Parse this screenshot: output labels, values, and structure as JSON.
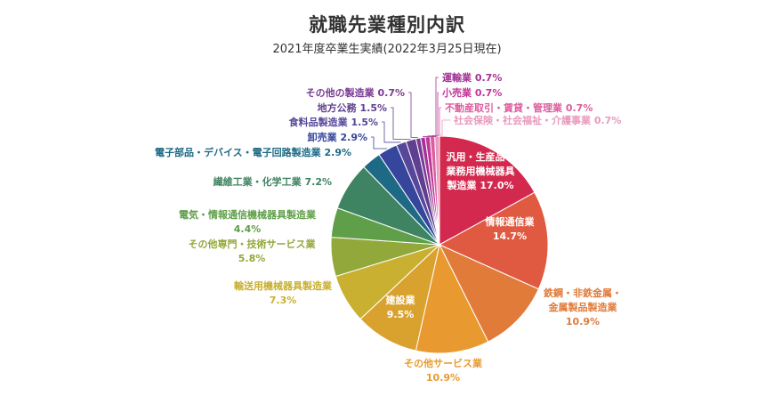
{
  "chart_data": {
    "type": "pie",
    "title": "就職先業種別内訳",
    "subtitle": "2021年度卒業生実績(2022年3月25日現在)",
    "start": "top",
    "direction": "clockwise",
    "slices": [
      {
        "label": "汎用・生産品・業務用機械器具製造業",
        "lines": [
          "汎用・生産品・",
          "業務用機械器具",
          "製造業 17.0%"
        ],
        "value": 17.0,
        "color": "#d4294e",
        "placement": "inside"
      },
      {
        "label": "情報通信業",
        "lines": [
          "情報通信業",
          "14.7%"
        ],
        "value": 14.7,
        "color": "#e05a41",
        "placement": "inside"
      },
      {
        "label": "鉄鋼・非鉄金属・金属製品製造業",
        "lines": [
          "鉄鋼・非鉄金属・",
          "金属製品製造業",
          "10.9%"
        ],
        "value": 10.9,
        "color": "#e07b3a",
        "placement": "outside"
      },
      {
        "label": "その他サービス業",
        "lines": [
          "その他サービス業",
          "10.9%"
        ],
        "value": 10.9,
        "color": "#e89a30",
        "placement": "outside"
      },
      {
        "label": "建設業",
        "lines": [
          "建設業",
          "9.5%"
        ],
        "value": 9.5,
        "color": "#d9a22e",
        "placement": "inside"
      },
      {
        "label": "輸送用機械器具製造業",
        "lines": [
          "輸送用機械器具製造業",
          "7.3%"
        ],
        "value": 7.3,
        "color": "#c9b030",
        "placement": "outside"
      },
      {
        "label": "その他専門・技術サービス業",
        "lines": [
          "その他専門・技術サービス業",
          "5.8%"
        ],
        "value": 5.8,
        "color": "#93a83a",
        "placement": "outside"
      },
      {
        "label": "電気・情報通信機械器具製造業",
        "lines": [
          "電気・情報通信機械器具製造業",
          "4.4%"
        ],
        "value": 4.4,
        "color": "#5f9f4a",
        "placement": "outside"
      },
      {
        "label": "繊維工業・化学工業",
        "lines": [
          "繊維工業・化学工業 7.2%"
        ],
        "value": 7.2,
        "color": "#3f8462",
        "placement": "outside"
      },
      {
        "label": "電子部品・デバイス・電子回路製造業",
        "lines": [
          "電子部品・デバイス・電子回路製造業 2.9%"
        ],
        "value": 2.9,
        "color": "#1e6a86",
        "placement": "outside"
      },
      {
        "label": "卸売業",
        "lines": [
          "卸売業 2.9%"
        ],
        "value": 2.9,
        "color": "#36469c",
        "placement": "outside"
      },
      {
        "label": "食料品製造業",
        "lines": [
          "食料品製造業 1.5%"
        ],
        "value": 1.5,
        "color": "#56479a",
        "placement": "outside"
      },
      {
        "label": "地方公務",
        "lines": [
          "地方公務 1.5%"
        ],
        "value": 1.5,
        "color": "#5f3f90",
        "placement": "outside"
      },
      {
        "label": "その他の製造業",
        "lines": [
          "その他の製造業 0.7%"
        ],
        "value": 0.7,
        "color": "#7a3a94",
        "placement": "outside"
      },
      {
        "label": "運輸業",
        "lines": [
          "運輸業 0.7%"
        ],
        "value": 0.7,
        "color": "#a33396",
        "placement": "outside"
      },
      {
        "label": "小売業",
        "lines": [
          "小売業 0.7%"
        ],
        "value": 0.7,
        "color": "#c2369a",
        "placement": "outside"
      },
      {
        "label": "不動産取引・賃貸・管理業",
        "lines": [
          "不動産取引・賃貸・管理業 0.7%"
        ],
        "value": 0.7,
        "color": "#dc5e9e",
        "placement": "outside"
      },
      {
        "label": "社会保険・社会福祉・介護事業",
        "lines": [
          "社会保険・社会福祉・介護事業 0.7%"
        ],
        "value": 0.7,
        "color": "#e99abd",
        "placement": "outside"
      }
    ]
  }
}
